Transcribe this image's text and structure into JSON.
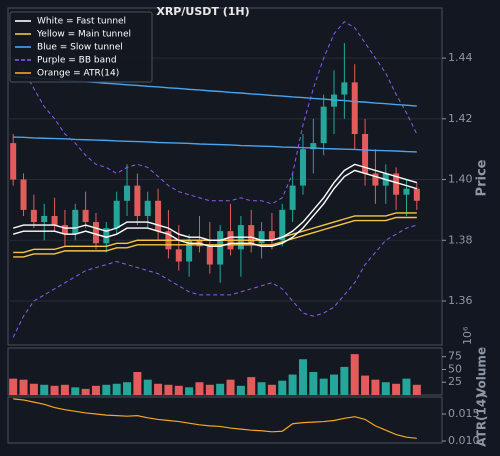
{
  "chart_data": [
    {
      "type": "candlestick",
      "title": "XRP/USDT (1H)",
      "y_label": "Price",
      "ylim": [
        1.3455,
        1.4565
      ],
      "yticks": [
        1.36,
        1.38,
        {
          "value": 1.4,
          "label": "1.40"
        },
        1.42,
        1.44
      ],
      "grid": true,
      "up_color": "#26a69a",
      "down_color": "#e25c5c",
      "open": [
        1.412,
        1.4,
        1.39,
        1.386,
        1.388,
        1.385,
        1.382,
        1.39,
        1.386,
        1.379,
        1.384,
        1.393,
        1.398,
        1.388,
        1.393,
        1.383,
        1.377,
        1.373,
        1.38,
        1.378,
        1.372,
        1.383,
        1.377,
        1.385,
        1.379,
        1.383,
        1.38,
        1.39,
        1.398,
        1.41,
        1.412,
        1.424,
        1.428,
        1.432,
        1.415,
        1.402,
        1.398,
        1.402,
        1.395,
        1.397
      ],
      "high": [
        1.415,
        1.402,
        1.395,
        1.392,
        1.394,
        1.39,
        1.392,
        1.396,
        1.389,
        1.386,
        1.396,
        1.405,
        1.402,
        1.396,
        1.397,
        1.39,
        1.385,
        1.382,
        1.388,
        1.386,
        1.385,
        1.392,
        1.388,
        1.39,
        1.386,
        1.389,
        1.392,
        1.402,
        1.415,
        1.42,
        1.428,
        1.436,
        1.445,
        1.438,
        1.42,
        1.41,
        1.405,
        1.404,
        1.4,
        1.399
      ],
      "low": [
        1.398,
        1.388,
        1.384,
        1.38,
        1.383,
        1.378,
        1.38,
        1.384,
        1.377,
        1.376,
        1.382,
        1.388,
        1.385,
        1.384,
        1.38,
        1.374,
        1.37,
        1.368,
        1.376,
        1.369,
        1.366,
        1.375,
        1.368,
        1.376,
        1.374,
        1.377,
        1.378,
        1.386,
        1.395,
        1.402,
        1.408,
        1.415,
        1.42,
        1.41,
        1.398,
        1.392,
        1.392,
        1.39,
        1.388,
        1.39
      ],
      "close": [
        1.4,
        1.39,
        1.386,
        1.388,
        1.385,
        1.382,
        1.39,
        1.386,
        1.379,
        1.384,
        1.393,
        1.398,
        1.388,
        1.393,
        1.383,
        1.377,
        1.373,
        1.38,
        1.378,
        1.372,
        1.383,
        1.377,
        1.385,
        1.379,
        1.383,
        1.38,
        1.39,
        1.398,
        1.41,
        1.412,
        1.424,
        1.428,
        1.432,
        1.415,
        1.402,
        1.398,
        1.402,
        1.395,
        1.397,
        1.393
      ],
      "lines": [
        {
          "color": "#4aa3f0",
          "dash": false,
          "values": [
            1.434,
            1.4337,
            1.4335,
            1.4332,
            1.433,
            1.4327,
            1.4325,
            1.4322,
            1.432,
            1.4317,
            1.4315,
            1.4312,
            1.431,
            1.4307,
            1.4305,
            1.4302,
            1.43,
            1.4297,
            1.4295,
            1.4292,
            1.429,
            1.4287,
            1.4285,
            1.4282,
            1.428,
            1.4277,
            1.4275,
            1.4272,
            1.427,
            1.4267,
            1.4265,
            1.4262,
            1.426,
            1.4257,
            1.4255,
            1.4252,
            1.425,
            1.4247,
            1.4245,
            1.4242
          ]
        },
        {
          "color": "#4aa3f0",
          "dash": false,
          "values": [
            1.414,
            1.4139,
            1.4137,
            1.4136,
            1.4135,
            1.4134,
            1.4132,
            1.4131,
            1.413,
            1.4129,
            1.4127,
            1.4126,
            1.4125,
            1.4124,
            1.4122,
            1.4121,
            1.412,
            1.4119,
            1.4117,
            1.4116,
            1.4115,
            1.4114,
            1.4112,
            1.4111,
            1.411,
            1.4109,
            1.4107,
            1.4106,
            1.4105,
            1.4104,
            1.4102,
            1.4101,
            1.41,
            1.4099,
            1.4097,
            1.4096,
            1.4095,
            1.4094,
            1.4092,
            1.4091
          ]
        },
        {
          "color": "#8a5cf5",
          "dash": true,
          "values": [
            1.44,
            1.436,
            1.43,
            1.424,
            1.42,
            1.415,
            1.412,
            1.408,
            1.405,
            1.404,
            1.402,
            1.404,
            1.405,
            1.404,
            1.401,
            1.398,
            1.396,
            1.395,
            1.394,
            1.393,
            1.393,
            1.393,
            1.394,
            1.393,
            1.393,
            1.392,
            1.394,
            1.402,
            1.418,
            1.43,
            1.44,
            1.448,
            1.452,
            1.45,
            1.445,
            1.44,
            1.435,
            1.428,
            1.422,
            1.415
          ]
        },
        {
          "color": "#8a5cf5",
          "dash": true,
          "values": [
            1.348,
            1.355,
            1.36,
            1.362,
            1.364,
            1.366,
            1.368,
            1.37,
            1.371,
            1.372,
            1.373,
            1.372,
            1.371,
            1.37,
            1.369,
            1.367,
            1.365,
            1.363,
            1.362,
            1.362,
            1.362,
            1.362,
            1.363,
            1.364,
            1.365,
            1.366,
            1.364,
            1.36,
            1.356,
            1.355,
            1.356,
            1.358,
            1.362,
            1.366,
            1.372,
            1.376,
            1.38,
            1.382,
            1.384,
            1.385
          ]
        },
        {
          "color": "#f5c542",
          "dash": false,
          "values": [
            1.376,
            1.376,
            1.377,
            1.377,
            1.377,
            1.378,
            1.378,
            1.378,
            1.378,
            1.378,
            1.379,
            1.379,
            1.38,
            1.38,
            1.38,
            1.38,
            1.38,
            1.38,
            1.38,
            1.38,
            1.38,
            1.38,
            1.38,
            1.38,
            1.38,
            1.38,
            1.381,
            1.382,
            1.383,
            1.384,
            1.385,
            1.386,
            1.387,
            1.388,
            1.388,
            1.388,
            1.388,
            1.389,
            1.389,
            1.389
          ]
        },
        {
          "color": "#f5c542",
          "dash": false,
          "values": [
            1.3745,
            1.3745,
            1.3755,
            1.3755,
            1.3755,
            1.3765,
            1.3765,
            1.3765,
            1.3765,
            1.3765,
            1.3775,
            1.3775,
            1.3785,
            1.3785,
            1.3785,
            1.3785,
            1.3785,
            1.3785,
            1.3785,
            1.3785,
            1.3785,
            1.3785,
            1.3785,
            1.3785,
            1.3785,
            1.3785,
            1.3795,
            1.3805,
            1.3815,
            1.3825,
            1.3835,
            1.3845,
            1.3855,
            1.3865,
            1.3865,
            1.3865,
            1.3865,
            1.3875,
            1.3875,
            1.3875
          ]
        },
        {
          "color": "#ffffff",
          "dash": false,
          "values": [
            1.384,
            1.385,
            1.385,
            1.385,
            1.385,
            1.384,
            1.384,
            1.385,
            1.384,
            1.383,
            1.384,
            1.386,
            1.386,
            1.386,
            1.385,
            1.384,
            1.382,
            1.381,
            1.381,
            1.38,
            1.38,
            1.381,
            1.381,
            1.381,
            1.38,
            1.38,
            1.381,
            1.383,
            1.386,
            1.39,
            1.394,
            1.399,
            1.403,
            1.405,
            1.404,
            1.403,
            1.402,
            1.401,
            1.4,
            1.399
          ]
        },
        {
          "color": "#ffffff",
          "dash": false,
          "values": [
            1.382,
            1.383,
            1.383,
            1.383,
            1.383,
            1.382,
            1.382,
            1.383,
            1.382,
            1.381,
            1.382,
            1.384,
            1.384,
            1.384,
            1.383,
            1.382,
            1.38,
            1.379,
            1.379,
            1.378,
            1.378,
            1.379,
            1.379,
            1.379,
            1.378,
            1.378,
            1.379,
            1.381,
            1.384,
            1.388,
            1.392,
            1.397,
            1.401,
            1.403,
            1.402,
            1.401,
            1.4,
            1.399,
            1.398,
            1.397
          ]
        }
      ],
      "legend": [
        {
          "label": "White = Fast tunnel",
          "color": "#ffffff",
          "dash": false
        },
        {
          "label": "Yellow = Main tunnel",
          "color": "#f5c542",
          "dash": false
        },
        {
          "label": "Blue = Slow tunnel",
          "color": "#4aa3f0",
          "dash": false
        },
        {
          "label": "Purple = BB band",
          "color": "#8a5cf5",
          "dash": true
        },
        {
          "label": "Orange = ATR(14)",
          "color": "#f5a623",
          "dash": false
        }
      ]
    },
    {
      "type": "bar",
      "y_label": "Volume",
      "multiplier": "10⁶",
      "ylim": [
        0,
        92
      ],
      "yticks": [
        25,
        50,
        75
      ],
      "values": [
        32,
        30,
        22,
        20,
        18,
        20,
        15,
        12,
        18,
        20,
        22,
        25,
        45,
        30,
        22,
        20,
        18,
        15,
        25,
        20,
        22,
        30,
        18,
        35,
        25,
        20,
        28,
        40,
        70,
        45,
        32,
        40,
        55,
        80,
        38,
        30,
        25,
        22,
        32,
        20
      ]
    },
    {
      "type": "line",
      "y_label": "ATR(14)",
      "color": "#f5a623",
      "ylim": [
        0.00963,
        0.01815
      ],
      "yticks": [
        {
          "value": 0.01,
          "label": "0.010"
        },
        0.015
      ],
      "values": [
        0.0178,
        0.0176,
        0.0172,
        0.0168,
        0.0162,
        0.0158,
        0.0155,
        0.0152,
        0.015,
        0.0148,
        0.0147,
        0.0146,
        0.0147,
        0.0143,
        0.014,
        0.0138,
        0.0136,
        0.0133,
        0.013,
        0.0128,
        0.0127,
        0.0124,
        0.0122,
        0.012,
        0.0119,
        0.0117,
        0.0118,
        0.0132,
        0.0134,
        0.0135,
        0.0136,
        0.0138,
        0.0142,
        0.0145,
        0.014,
        0.0128,
        0.012,
        0.0112,
        0.0107,
        0.0105
      ]
    }
  ]
}
